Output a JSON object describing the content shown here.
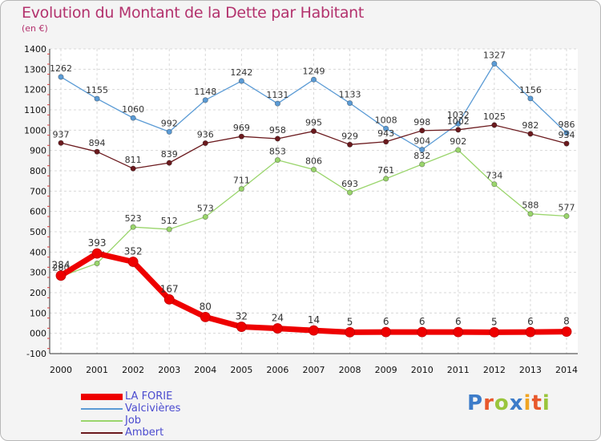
{
  "title": "Evolution du Montant de la Dette par Habitant",
  "subtitle": "(en €)",
  "logo": {
    "text": "Proxiti",
    "letter_colors": [
      "#3d7cc9",
      "#e8582c",
      "#9ac53c",
      "#3d7cc9",
      "#f0a422",
      "#e8582c",
      "#9ac53c"
    ]
  },
  "chart_data": {
    "type": "line",
    "x": [
      "2000",
      "2001",
      "2002",
      "2003",
      "2004",
      "2005",
      "2006",
      "2007",
      "2008",
      "2009",
      "2010",
      "2011",
      "2012",
      "2013",
      "2014"
    ],
    "ylim": [
      -100,
      1400
    ],
    "yticks": [
      "-100",
      "000",
      "100",
      "200",
      "300",
      "400",
      "500",
      "600",
      "700",
      "800",
      "900",
      "1000",
      "1100",
      "1200",
      "1300",
      "1400"
    ],
    "grid": true,
    "legend_position": "bottom-left",
    "series": [
      {
        "name": "Valcivières",
        "color": "#5b9bd5",
        "values": [
          1262,
          1155,
          1060,
          992,
          1148,
          1242,
          1131,
          1249,
          1133,
          1008,
          904,
          1032,
          1327,
          1156,
          986
        ]
      },
      {
        "name": "Ambert",
        "color": "#6b1a1e",
        "values": [
          937,
          894,
          811,
          839,
          936,
          969,
          958,
          995,
          929,
          943,
          998,
          1002,
          1025,
          982,
          934
        ]
      },
      {
        "name": "Job",
        "color": "#9ad56c",
        "values": [
          280,
          344,
          523,
          512,
          573,
          711,
          853,
          806,
          693,
          761,
          832,
          902,
          734,
          588,
          577
        ]
      },
      {
        "name": "LA FORIE",
        "color": "#ee0000",
        "values": [
          284,
          393,
          352,
          167,
          80,
          32,
          24,
          14,
          5,
          6,
          6,
          6,
          5,
          6,
          8
        ]
      }
    ],
    "legend": [
      "LA FORIE",
      "Valcivières",
      "Job",
      "Ambert"
    ]
  }
}
